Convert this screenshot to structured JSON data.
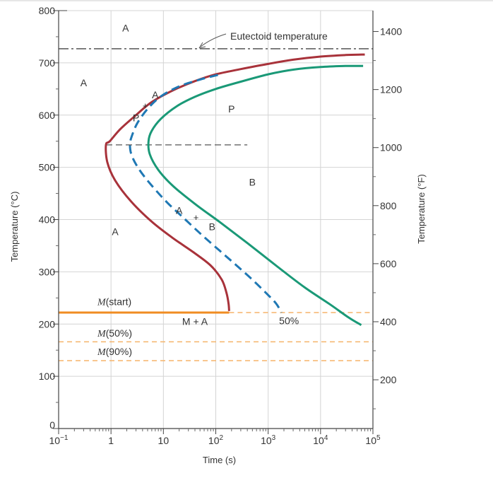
{
  "chart_data": {
    "type": "line",
    "title": "",
    "xlabel": "Time (s)",
    "ylabel": "Temperature (°C)",
    "ylabel_right": "Temperature (°F)",
    "x_scale": "log",
    "xlim": [
      0.1,
      100000
    ],
    "ylim": [
      0,
      800
    ],
    "grid": true,
    "x_ticks": [
      {
        "value": 0.1,
        "label": "10",
        "sup": "−1"
      },
      {
        "value": 1,
        "label": "1",
        "sup": ""
      },
      {
        "value": 10,
        "label": "10",
        "sup": ""
      },
      {
        "value": 100,
        "label": "10",
        "sup": "2"
      },
      {
        "value": 1000,
        "label": "10",
        "sup": "3"
      },
      {
        "value": 10000,
        "label": "10",
        "sup": "4"
      },
      {
        "value": 100000,
        "label": "10",
        "sup": "5"
      }
    ],
    "y_ticks": [
      0,
      100,
      200,
      300,
      400,
      500,
      600,
      700,
      800
    ],
    "y_right_ticks": [
      200,
      400,
      600,
      800,
      1000,
      1200,
      1400
    ],
    "eutectoid": {
      "label": "Eutectoid temperature",
      "temp": 727
    },
    "series": [
      {
        "id": "start",
        "color": "#a8323a",
        "style": "solid",
        "points": [
          [
            70000,
            716
          ],
          [
            30000,
            715
          ],
          [
            10000,
            712
          ],
          [
            3000,
            706
          ],
          [
            1000,
            698
          ],
          [
            300,
            688
          ],
          [
            100,
            678
          ],
          [
            40,
            665
          ],
          [
            15,
            647
          ],
          [
            6,
            625
          ],
          [
            3,
            600
          ],
          [
            1.5,
            573
          ],
          [
            0.95,
            550
          ],
          [
            0.8,
            543
          ],
          [
            0.85,
            510
          ],
          [
            1.2,
            475
          ],
          [
            2.4,
            435
          ],
          [
            6,
            396
          ],
          [
            15,
            365
          ],
          [
            38,
            337
          ],
          [
            80,
            312
          ],
          [
            130,
            285
          ],
          [
            160,
            260
          ],
          [
            175,
            240
          ],
          [
            180,
            225
          ]
        ]
      },
      {
        "id": "fifty",
        "color": "#1f78b4",
        "style": "dashed",
        "points": [
          [
            110,
            677
          ],
          [
            50,
            668
          ],
          [
            20,
            655
          ],
          [
            9,
            636
          ],
          [
            5,
            612
          ],
          [
            3.2,
            585
          ],
          [
            2.5,
            560
          ],
          [
            2.3,
            543
          ],
          [
            2.5,
            522
          ],
          [
            3.5,
            495
          ],
          [
            6,
            465
          ],
          [
            12,
            432
          ],
          [
            25,
            402
          ],
          [
            55,
            370
          ],
          [
            120,
            340
          ],
          [
            250,
            312
          ],
          [
            500,
            285
          ],
          [
            900,
            260
          ],
          [
            1400,
            240
          ],
          [
            1800,
            222
          ]
        ]
      },
      {
        "id": "end",
        "color": "#1a9977",
        "style": "solid",
        "points": [
          [
            65000,
            694
          ],
          [
            30000,
            694
          ],
          [
            10000,
            692
          ],
          [
            3000,
            687
          ],
          [
            1000,
            678
          ],
          [
            300,
            664
          ],
          [
            100,
            650
          ],
          [
            40,
            635
          ],
          [
            18,
            617
          ],
          [
            9,
            593
          ],
          [
            6,
            570
          ],
          [
            5.2,
            550
          ],
          [
            5.5,
            525
          ],
          [
            8,
            495
          ],
          [
            15,
            465
          ],
          [
            40,
            430
          ],
          [
            120,
            395
          ],
          [
            400,
            355
          ],
          [
            1500,
            310
          ],
          [
            5000,
            270
          ],
          [
            15000,
            238
          ],
          [
            35000,
            212
          ],
          [
            60000,
            198
          ]
        ]
      }
    ],
    "martensite": [
      {
        "id": "m_start",
        "temp": 222,
        "label_main": "M",
        "label_paren": "(start)",
        "solid_to": 180,
        "label_at": [
          0.8,
          236
        ]
      },
      {
        "id": "m_50",
        "temp": 166,
        "label_main": "M",
        "label_paren": "(50%)",
        "solid_to": 0.1,
        "label_at": [
          0.8,
          176
        ]
      },
      {
        "id": "m_90",
        "temp": 130,
        "label_main": "M",
        "label_paren": "(90%)",
        "solid_to": 0.1,
        "label_at": [
          0.8,
          141
        ]
      }
    ],
    "nose_line": {
      "temp": 543,
      "from": 0.8,
      "to": 400
    },
    "region_labels": [
      {
        "text": "A",
        "x": 1.9,
        "y": 760
      },
      {
        "text": "A",
        "x": 0.3,
        "y": 655
      },
      {
        "text": "P",
        "x": 200,
        "y": 605
      },
      {
        "text": "B",
        "x": 500,
        "y": 465
      },
      {
        "text": "A",
        "x": 1.2,
        "y": 370
      },
      {
        "text": "M + A",
        "x": 40,
        "y": 198
      },
      {
        "text": "50%",
        "x": 2500,
        "y": 200
      },
      {
        "text": "A",
        "x": 7,
        "y": 632
      },
      {
        "text": "+",
        "x": 4.5,
        "y": 612
      },
      {
        "text": "P",
        "x": 3,
        "y": 588
      },
      {
        "text": "A",
        "x": 20,
        "y": 411
      },
      {
        "text": "+",
        "x": 42,
        "y": 398
      },
      {
        "text": "B",
        "x": 85,
        "y": 380
      }
    ]
  }
}
